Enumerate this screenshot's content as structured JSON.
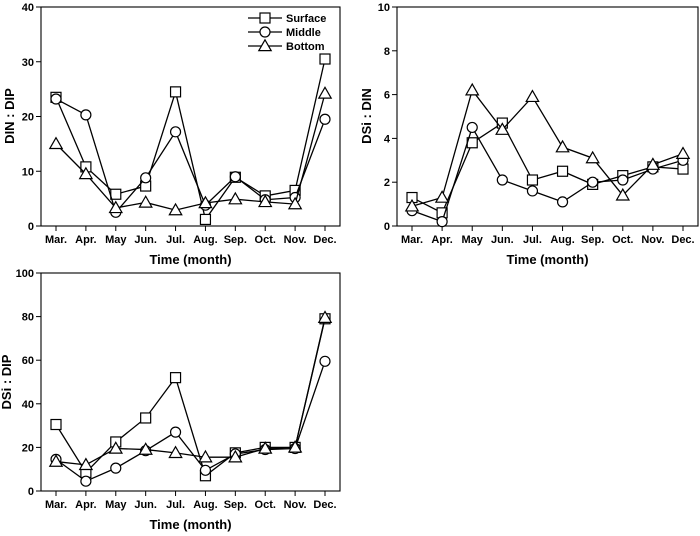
{
  "chart_data": [
    {
      "type": "line",
      "panel": "top-left",
      "categories": [
        "Mar.",
        "Apr.",
        "May",
        "Jun.",
        "Jul.",
        "Aug.",
        "Sep.",
        "Oct.",
        "Nov.",
        "Dec."
      ],
      "xlabel": "Time (month)",
      "ylabel": "DIN : DIP",
      "ylim": [
        0,
        40
      ],
      "yticks": [
        0,
        10,
        20,
        30,
        40
      ],
      "grid": false,
      "legend": {
        "placement": "top-right",
        "entries": [
          "Surface",
          "Middle",
          "Bottom"
        ]
      },
      "series": [
        {
          "name": "Surface",
          "marker": "square",
          "values": [
            23.5,
            10.8,
            5.8,
            7.3,
            24.5,
            1.2,
            8.9,
            5.5,
            6.5,
            30.5
          ]
        },
        {
          "name": "Middle",
          "marker": "circle",
          "values": [
            23.2,
            20.3,
            2.5,
            8.8,
            17.2,
            3.8,
            9.0,
            4.8,
            5.2,
            19.5
          ]
        },
        {
          "name": "Bottom",
          "marker": "triangle",
          "values": [
            15.0,
            9.5,
            3.3,
            4.3,
            2.9,
            4.2,
            4.9,
            4.4,
            4.0,
            24.2
          ]
        }
      ]
    },
    {
      "type": "line",
      "panel": "top-right",
      "categories": [
        "Mar.",
        "Apr.",
        "May",
        "Jun.",
        "Jul.",
        "Aug.",
        "Sep.",
        "Oct.",
        "Nov.",
        "Dec."
      ],
      "xlabel": "Time (month)",
      "ylabel": "DSi : DIN",
      "ylim": [
        0,
        10
      ],
      "yticks": [
        0,
        2,
        4,
        6,
        8,
        10
      ],
      "grid": false,
      "series": [
        {
          "name": "Surface",
          "marker": "square",
          "values": [
            1.3,
            0.6,
            3.8,
            4.7,
            2.1,
            2.5,
            1.9,
            2.3,
            2.7,
            2.6
          ]
        },
        {
          "name": "Middle",
          "marker": "circle",
          "values": [
            0.7,
            0.2,
            4.5,
            2.1,
            1.6,
            1.1,
            2.0,
            2.1,
            2.6,
            3.0
          ]
        },
        {
          "name": "Bottom",
          "marker": "triangle",
          "values": [
            0.9,
            1.3,
            6.2,
            4.4,
            5.9,
            3.6,
            3.1,
            1.4,
            2.8,
            3.3
          ]
        }
      ]
    },
    {
      "type": "line",
      "panel": "bottom-left",
      "categories": [
        "Mar.",
        "Apr.",
        "May",
        "Jun.",
        "Jul.",
        "Aug.",
        "Sep.",
        "Oct.",
        "Nov.",
        "Dec."
      ],
      "xlabel": "Time (month)",
      "ylabel": "DSi : DIP",
      "ylim": [
        0,
        100
      ],
      "yticks": [
        0,
        20,
        40,
        60,
        80,
        100
      ],
      "grid": false,
      "series": [
        {
          "name": "Surface",
          "marker": "square",
          "values": [
            30.5,
            8.5,
            22.5,
            33.5,
            52.0,
            7.0,
            17.5,
            20.0,
            20.0,
            79.0
          ]
        },
        {
          "name": "Middle",
          "marker": "circle",
          "values": [
            14.5,
            4.5,
            10.5,
            18.5,
            27.0,
            9.5,
            17.0,
            19.0,
            19.5,
            59.5
          ]
        },
        {
          "name": "Bottom",
          "marker": "triangle",
          "values": [
            13.5,
            12.0,
            19.5,
            19.0,
            17.5,
            15.5,
            15.5,
            19.5,
            20.0,
            79.5
          ]
        }
      ]
    }
  ]
}
